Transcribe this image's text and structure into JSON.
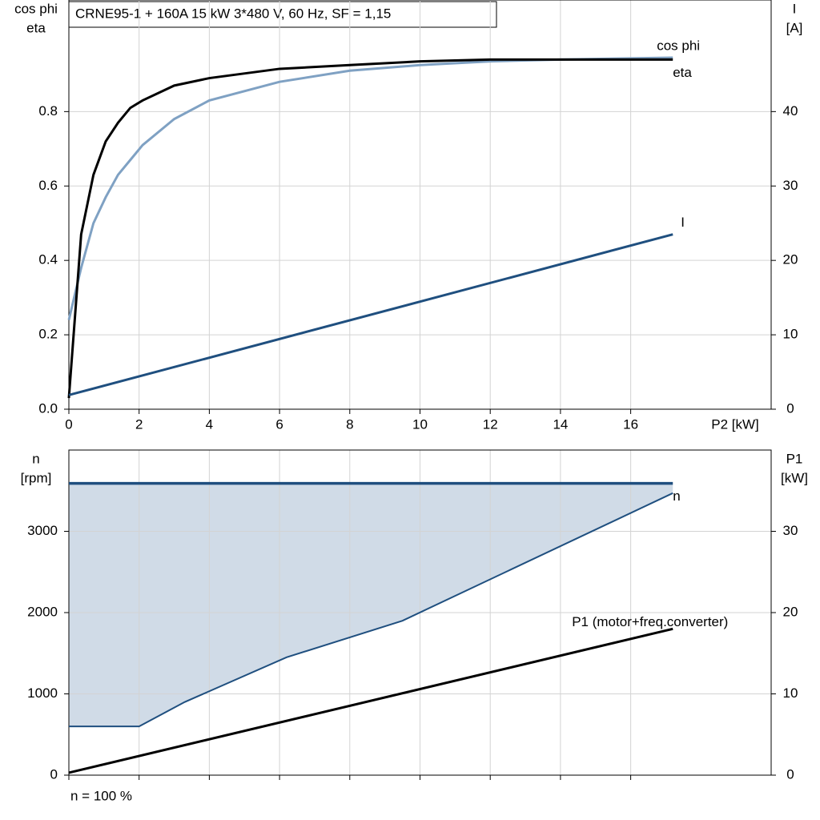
{
  "chart_data": [
    {
      "type": "line",
      "title": "CRNE95-1 + 160A   15 kW   3*480 V, 60 Hz, SF = 1,15",
      "ylabel": [
        "cos phi",
        "eta"
      ],
      "y2label": [
        "I",
        "[A]"
      ],
      "xlabel": "P2 [kW]",
      "xlim": [
        0,
        20
      ],
      "xticks": [
        0,
        2,
        4,
        6,
        8,
        10,
        12,
        14,
        16
      ],
      "ylim": [
        0,
        1.1
      ],
      "yticks": [
        {
          "value": 0,
          "label": "0.0"
        },
        0.2,
        0.4,
        0.6,
        0.8
      ],
      "y2lim": [
        0,
        55
      ],
      "y2ticks": [
        0,
        10,
        20,
        30,
        40
      ],
      "grid": true,
      "series": [
        {
          "name": "cos phi",
          "color": "#7fa1c3",
          "x": [
            0,
            0.35,
            0.7,
            1.05,
            1.4,
            1.75,
            2.1,
            3,
            4,
            6,
            8,
            10,
            12,
            14,
            17.2
          ],
          "values": [
            0.24,
            0.38,
            0.5,
            0.57,
            0.63,
            0.67,
            0.71,
            0.78,
            0.83,
            0.88,
            0.91,
            0.925,
            0.935,
            0.94,
            0.945
          ]
        },
        {
          "name": "eta",
          "color": "#000000",
          "x": [
            0,
            0.35,
            0.7,
            1.05,
            1.4,
            1.75,
            2.1,
            3,
            4,
            6,
            8,
            10,
            12,
            14,
            17.2
          ],
          "values": [
            0.03,
            0.47,
            0.63,
            0.72,
            0.77,
            0.81,
            0.83,
            0.87,
            0.89,
            0.915,
            0.925,
            0.935,
            0.94,
            0.94,
            0.94
          ]
        },
        {
          "name": "I",
          "color": "#1f4f7f",
          "axis": "y2",
          "x": [
            0,
            17.2
          ],
          "values": [
            1.9,
            23.5
          ]
        }
      ]
    },
    {
      "type": "area",
      "ylabel": [
        "n",
        "[rpm]"
      ],
      "y2label": [
        "P1",
        "[kW]"
      ],
      "note": "n = 100 %",
      "xlim": [
        0,
        20
      ],
      "ylim": [
        0,
        4000
      ],
      "yticks": [
        0,
        1000,
        2000,
        3000
      ],
      "y2lim": [
        0,
        40
      ],
      "y2ticks": [
        0,
        10,
        20,
        30
      ],
      "grid": true,
      "series": [
        {
          "name": "n",
          "color": "#1f4f7f",
          "fill": "#d0dbe7",
          "x": [
            0,
            2,
            3.3,
            6.2,
            9.5,
            17.2
          ],
          "values": [
            3590,
            3590,
            3590,
            3590,
            3590,
            3590
          ],
          "lower": [
            600,
            600,
            900,
            1450,
            1900,
            3470
          ]
        },
        {
          "name": "P1 (motor+freq.converter)",
          "color": "#000000",
          "axis": "y2",
          "x": [
            0,
            17.2
          ],
          "values": [
            0.3,
            18
          ]
        }
      ]
    }
  ]
}
